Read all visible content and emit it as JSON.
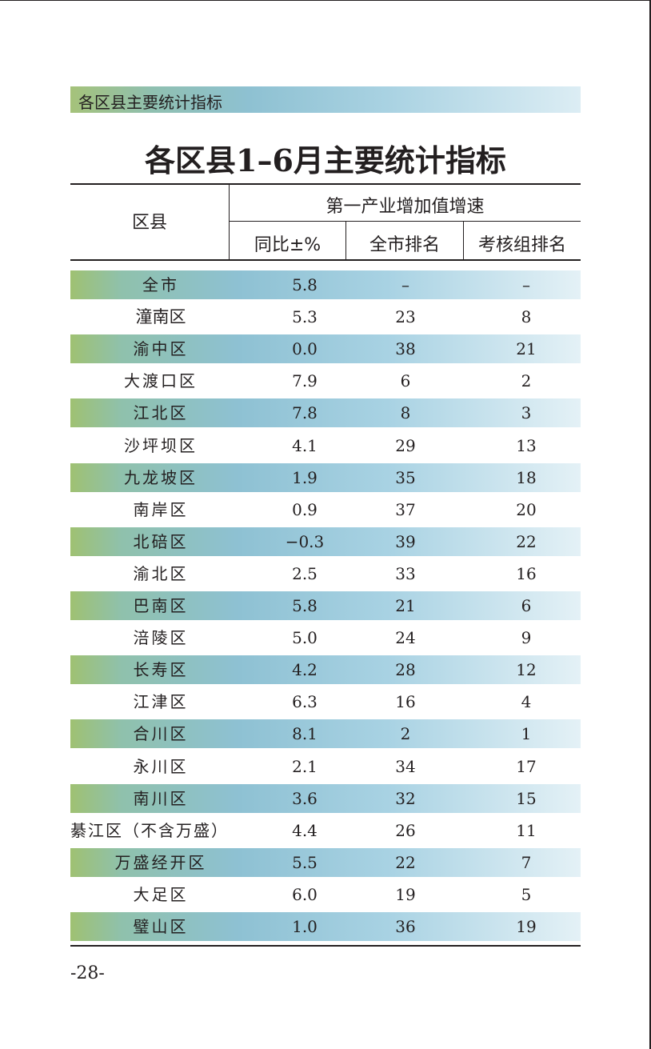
{
  "section_banner": "各区县主要统计指标",
  "title": "各区县1–6月主要统计指标",
  "table": {
    "header_district": "区县",
    "header_group": "第一产业增加值增速",
    "columns": [
      "同比±%",
      "全市排名",
      "考核组排名"
    ],
    "rows": [
      {
        "name": "全市",
        "yoy": "5.8",
        "city_rank": "–",
        "group_rank": "–"
      },
      {
        "name": "潼南区",
        "yoy": "5.3",
        "city_rank": "23",
        "group_rank": "8"
      },
      {
        "name": "渝中区",
        "yoy": "0.0",
        "city_rank": "38",
        "group_rank": "21"
      },
      {
        "name": "大渡口区",
        "yoy": "7.9",
        "city_rank": "6",
        "group_rank": "2"
      },
      {
        "name": "江北区",
        "yoy": "7.8",
        "city_rank": "8",
        "group_rank": "3"
      },
      {
        "name": "沙坪坝区",
        "yoy": "4.1",
        "city_rank": "29",
        "group_rank": "13"
      },
      {
        "name": "九龙坡区",
        "yoy": "1.9",
        "city_rank": "35",
        "group_rank": "18"
      },
      {
        "name": "南岸区",
        "yoy": "0.9",
        "city_rank": "37",
        "group_rank": "20"
      },
      {
        "name": "北碚区",
        "yoy": "−0.3",
        "city_rank": "39",
        "group_rank": "22"
      },
      {
        "name": "渝北区",
        "yoy": "2.5",
        "city_rank": "33",
        "group_rank": "16"
      },
      {
        "name": "巴南区",
        "yoy": "5.8",
        "city_rank": "21",
        "group_rank": "6"
      },
      {
        "name": "涪陵区",
        "yoy": "5.0",
        "city_rank": "24",
        "group_rank": "9"
      },
      {
        "name": "长寿区",
        "yoy": "4.2",
        "city_rank": "28",
        "group_rank": "12"
      },
      {
        "name": "江津区",
        "yoy": "6.3",
        "city_rank": "16",
        "group_rank": "4"
      },
      {
        "name": "合川区",
        "yoy": "8.1",
        "city_rank": "2",
        "group_rank": "1"
      },
      {
        "name": "永川区",
        "yoy": "2.1",
        "city_rank": "34",
        "group_rank": "17"
      },
      {
        "name": "南川区",
        "yoy": "3.6",
        "city_rank": "32",
        "group_rank": "15"
      },
      {
        "name": "綦江区（不含万盛）",
        "yoy": "4.4",
        "city_rank": "26",
        "group_rank": "11"
      },
      {
        "name": "万盛经开区",
        "yoy": "5.5",
        "city_rank": "22",
        "group_rank": "7"
      },
      {
        "name": "大足区",
        "yoy": "6.0",
        "city_rank": "19",
        "group_rank": "5"
      },
      {
        "name": "璧山区",
        "yoy": "1.0",
        "city_rank": "36",
        "group_rank": "19"
      }
    ]
  },
  "page_number": "-28-"
}
